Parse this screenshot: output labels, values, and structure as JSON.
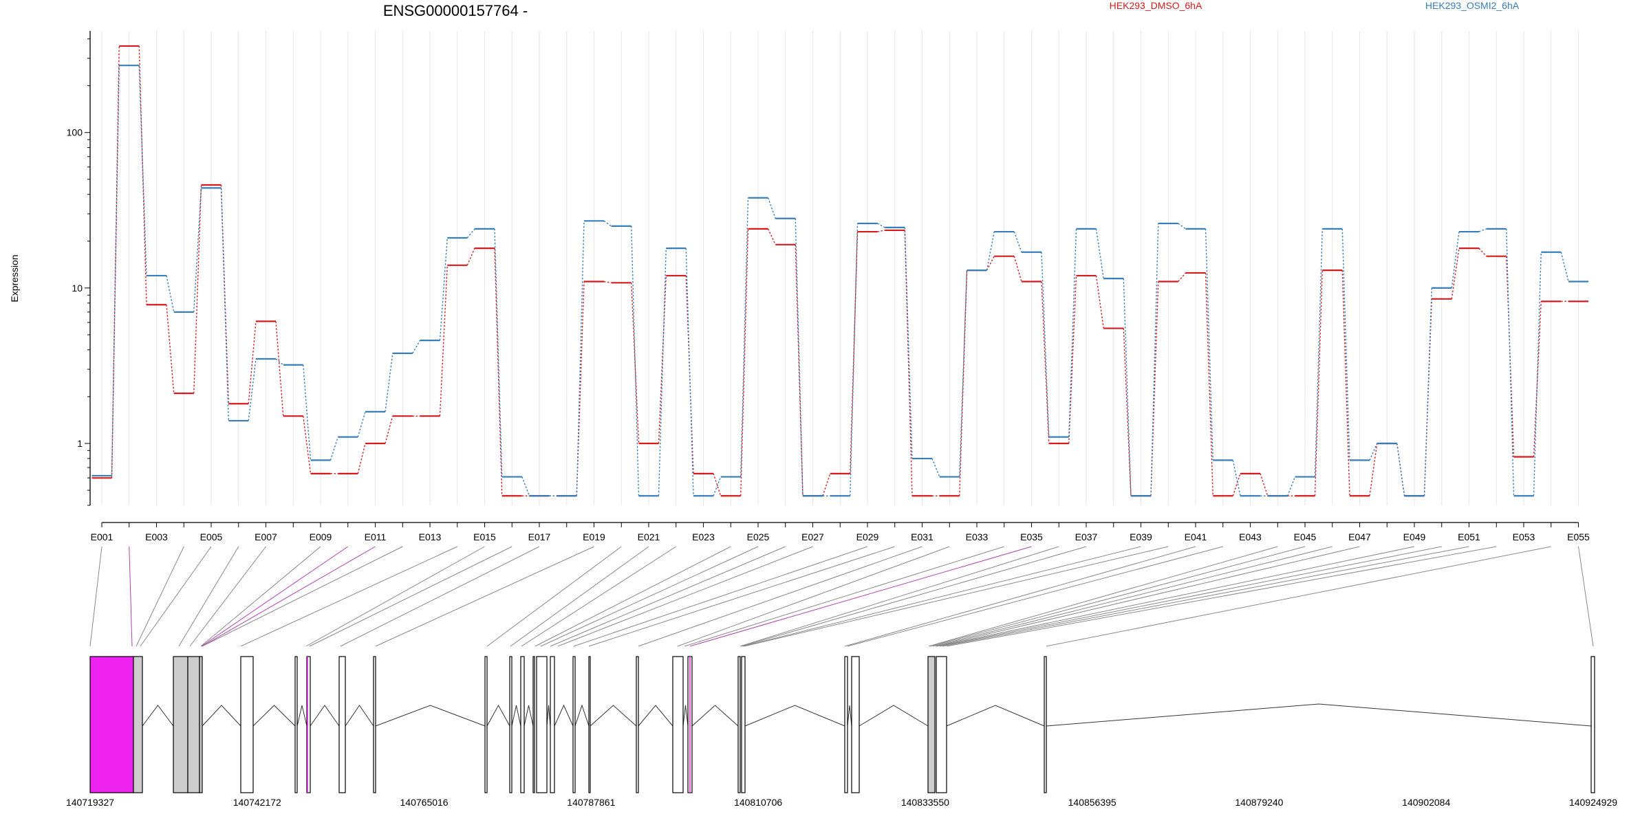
{
  "chart_data": {
    "type": "line",
    "title": "ENSG00000157764 -",
    "ylabel": "Expression",
    "xlabel": "",
    "yscale": "log",
    "ylim": [
      0.4,
      450
    ],
    "y_ticks": [
      1,
      10,
      100
    ],
    "y_tick_labels": [
      "1",
      "10",
      "100"
    ],
    "grid": true,
    "legend_position": "top-right",
    "exon_labels_shown": [
      "E001",
      "E003",
      "E005",
      "E007",
      "E009",
      "E011",
      "E013",
      "E015",
      "E017",
      "E019",
      "E021",
      "E023",
      "E025",
      "E027",
      "E029",
      "E031",
      "E033",
      "E035",
      "E037",
      "E039",
      "E041",
      "E043",
      "E045",
      "E047",
      "E049",
      "E051",
      "E053",
      "E055"
    ],
    "x": [
      "E001",
      "E002",
      "E003",
      "E004",
      "E005",
      "E006",
      "E007",
      "E008",
      "E009",
      "E010",
      "E011",
      "E012",
      "E013",
      "E014",
      "E015",
      "E016",
      "E017",
      "E018",
      "E019",
      "E020",
      "E021",
      "E022",
      "E023",
      "E024",
      "E025",
      "E026",
      "E027",
      "E028",
      "E029",
      "E030",
      "E031",
      "E032",
      "E033",
      "E034",
      "E035",
      "E036",
      "E037",
      "E038",
      "E039",
      "E040",
      "E041",
      "E042",
      "E043",
      "E044",
      "E045",
      "E046",
      "E047",
      "E048",
      "E049",
      "E050",
      "E051",
      "E052",
      "E053",
      "E054",
      "E055"
    ],
    "series": [
      {
        "name": "HEK293_DMSO_6hA",
        "color": "#d7191c",
        "values": [
          0.6,
          360,
          7.8,
          2.1,
          46,
          1.8,
          6.1,
          1.5,
          0.64,
          0.64,
          1.0,
          1.5,
          1.5,
          14,
          18,
          0.46,
          0.46,
          0.46,
          11,
          10.8,
          1.0,
          12,
          0.64,
          0.46,
          24,
          19,
          0.46,
          0.64,
          23,
          23.5,
          0.46,
          0.46,
          13,
          16,
          11,
          1.0,
          12,
          5.5,
          0.46,
          11,
          12.5,
          0.46,
          0.64,
          0.46,
          0.46,
          13,
          0.46,
          1.0,
          0.46,
          8.5,
          18,
          16,
          0.82,
          8.2,
          8.2
        ]
      },
      {
        "name": "HEK293_OSMI2_6hA",
        "color": "#377eb8",
        "values": [
          0.62,
          270,
          12,
          7,
          44,
          1.4,
          3.5,
          3.2,
          0.78,
          1.1,
          1.6,
          3.8,
          4.6,
          21,
          24,
          0.61,
          0.46,
          0.46,
          27,
          25,
          0.46,
          18,
          0.46,
          0.61,
          38,
          28,
          0.46,
          0.46,
          26,
          24.5,
          0.8,
          0.61,
          13,
          23,
          17,
          1.1,
          24,
          11.5,
          0.46,
          26,
          24,
          0.78,
          0.46,
          0.46,
          0.61,
          24,
          0.78,
          1.0,
          0.46,
          10,
          23,
          24,
          0.46,
          17,
          11
        ]
      }
    ],
    "genomic_axis": {
      "ticks": [
        "140719327",
        "140742172",
        "140765016",
        "140787861",
        "140810706",
        "140833550",
        "140856395",
        "140879240",
        "140902084",
        "140924929"
      ]
    },
    "gene_model": {
      "exon_color": "#ffffff",
      "intron_color": "#000000",
      "highlight_color": "#ee22ee",
      "outline_color": "#000000"
    }
  }
}
